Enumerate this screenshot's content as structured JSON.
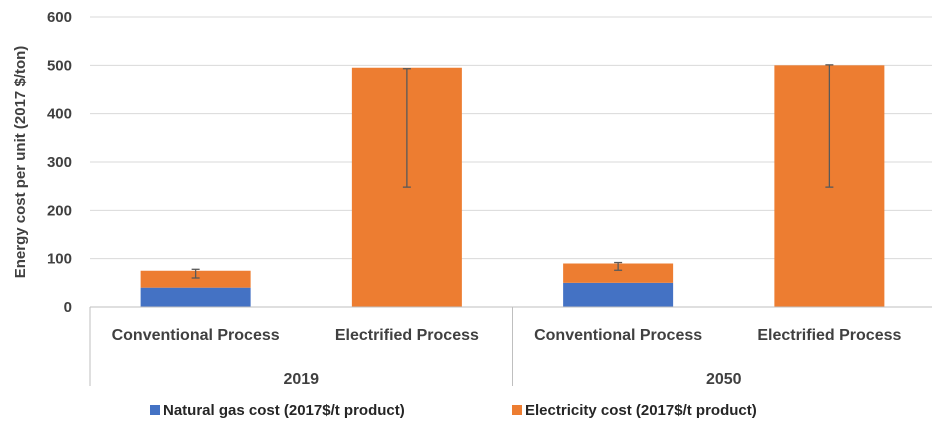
{
  "chart_data": {
    "type": "bar",
    "stacked": true,
    "ylabel": "Energy cost per unit (2017 $/ton)",
    "ylim": [
      0,
      600
    ],
    "yticks": [
      0,
      100,
      200,
      300,
      400,
      500,
      600
    ],
    "grid": true,
    "legend_position": "bottom",
    "groups": [
      {
        "label": "2019",
        "categories": [
          "Conventional Process",
          "Electrified Process"
        ]
      },
      {
        "label": "2050",
        "categories": [
          "Conventional Process",
          "Electrified Process"
        ]
      }
    ],
    "series": [
      {
        "name": "Natural gas cost (2017$/t product)",
        "color": "#4472C4",
        "values": [
          40,
          0,
          50,
          0
        ]
      },
      {
        "name": "Electricity cost (2017$/t product)",
        "color": "#ED7D31",
        "values": [
          35,
          495,
          40,
          500
        ]
      }
    ],
    "error_bars": [
      {
        "low": 60,
        "high": 78
      },
      {
        "low": 248,
        "high": 493
      },
      {
        "low": 76,
        "high": 92
      },
      {
        "low": 248,
        "high": 501
      }
    ],
    "error_bar_color": "#595959"
  }
}
